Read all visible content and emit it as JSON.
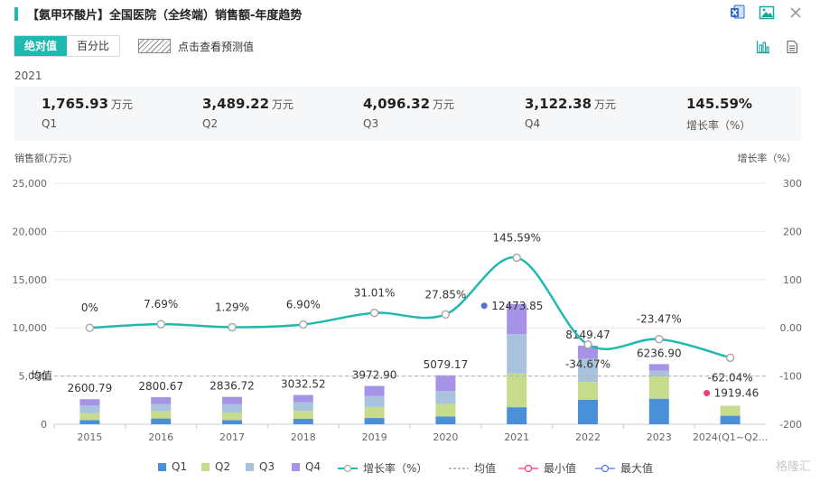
{
  "header": {
    "title": "【氨甲环酸片】全国医院（全终端）销售额-年度趋势"
  },
  "toolbar": {
    "absolute_label": "绝对值",
    "percent_label": "百分比",
    "forecast_label": "点击查看预测值"
  },
  "summary": {
    "year": "2021",
    "unit": "万元",
    "items": [
      {
        "value": "1,765.93",
        "label": "Q1",
        "unit": "万元"
      },
      {
        "value": "3,489.22",
        "label": "Q2",
        "unit": "万元"
      },
      {
        "value": "4,096.32",
        "label": "Q3",
        "unit": "万元"
      },
      {
        "value": "3,122.38",
        "label": "Q4",
        "unit": "万元"
      },
      {
        "value": "145.59%",
        "label": "增长率（%）",
        "unit": ""
      }
    ]
  },
  "chart_data": {
    "type": "bar",
    "ylabel_left": "销售额(万元)",
    "ylabel_right": "增长率（%）",
    "categories": [
      "2015",
      "2016",
      "2017",
      "2018",
      "2019",
      "2020",
      "2021",
      "2022",
      "2023",
      "2024(Q1~Q2..."
    ],
    "ylim_left": [
      0,
      25000
    ],
    "yticks_left": [
      "0",
      "5,000",
      "10,000",
      "15,000",
      "20,000",
      "25,000"
    ],
    "ylim_right": [
      -200,
      300
    ],
    "yticks_right": [
      "-200",
      "-100",
      "0.00",
      "100",
      "200",
      "300"
    ],
    "totals": [
      2600.79,
      2800.67,
      2836.72,
      3032.52,
      3972.9,
      5079.17,
      12473.85,
      8149.47,
      6236.9,
      1919.46
    ],
    "total_labels": [
      "2600.79",
      "2800.67",
      "2836.72",
      "3032.52",
      "3972.90",
      "5079.17",
      "12473.85",
      "8149.47",
      "6236.90",
      "1919.46"
    ],
    "series": [
      {
        "name": "Q1",
        "color": "#4a90d9",
        "values": [
          420,
          600,
          430,
          560,
          650,
          800,
          1765.93,
          2550,
          2650,
          880
        ]
      },
      {
        "name": "Q2",
        "color": "#c6dc8c",
        "values": [
          720,
          740,
          790,
          830,
          1150,
          1300,
          3489.22,
          1850,
          2300,
          1039.46
        ]
      },
      {
        "name": "Q3",
        "color": "#a9c2dd",
        "values": [
          800,
          760,
          860,
          900,
          1120,
          1350,
          4096.32,
          2400,
          600,
          0
        ]
      },
      {
        "name": "Q4",
        "color": "#a692e6",
        "values": [
          660.79,
          700.67,
          756.72,
          742.52,
          1052.9,
          1629.17,
          3122.38,
          1349.47,
          686.9,
          0
        ]
      }
    ],
    "growth": {
      "name": "增长率（%）",
      "color": "#20b9b0",
      "values": [
        0,
        7.69,
        1.29,
        6.9,
        31.01,
        27.85,
        145.59,
        -34.67,
        -23.47,
        -62.04
      ],
      "labels": [
        "0%",
        "7.69%",
        "1.29%",
        "6.90%",
        "31.01%",
        "27.85%",
        "145.59%",
        "-34.67%",
        "-23.47%",
        "-62.04%"
      ]
    },
    "average": {
      "name": "均值",
      "label": "均值",
      "value": 5000
    },
    "min_marker": {
      "name": "最小值",
      "color": "#f03c78",
      "index": 9
    },
    "max_marker": {
      "name": "最大值",
      "color": "#5b6fd6",
      "index": 6
    },
    "legend": [
      "Q1",
      "Q2",
      "Q3",
      "Q4",
      "增长率（%）",
      "均值",
      "最小值",
      "最大值"
    ]
  },
  "watermark": "格隆汇"
}
